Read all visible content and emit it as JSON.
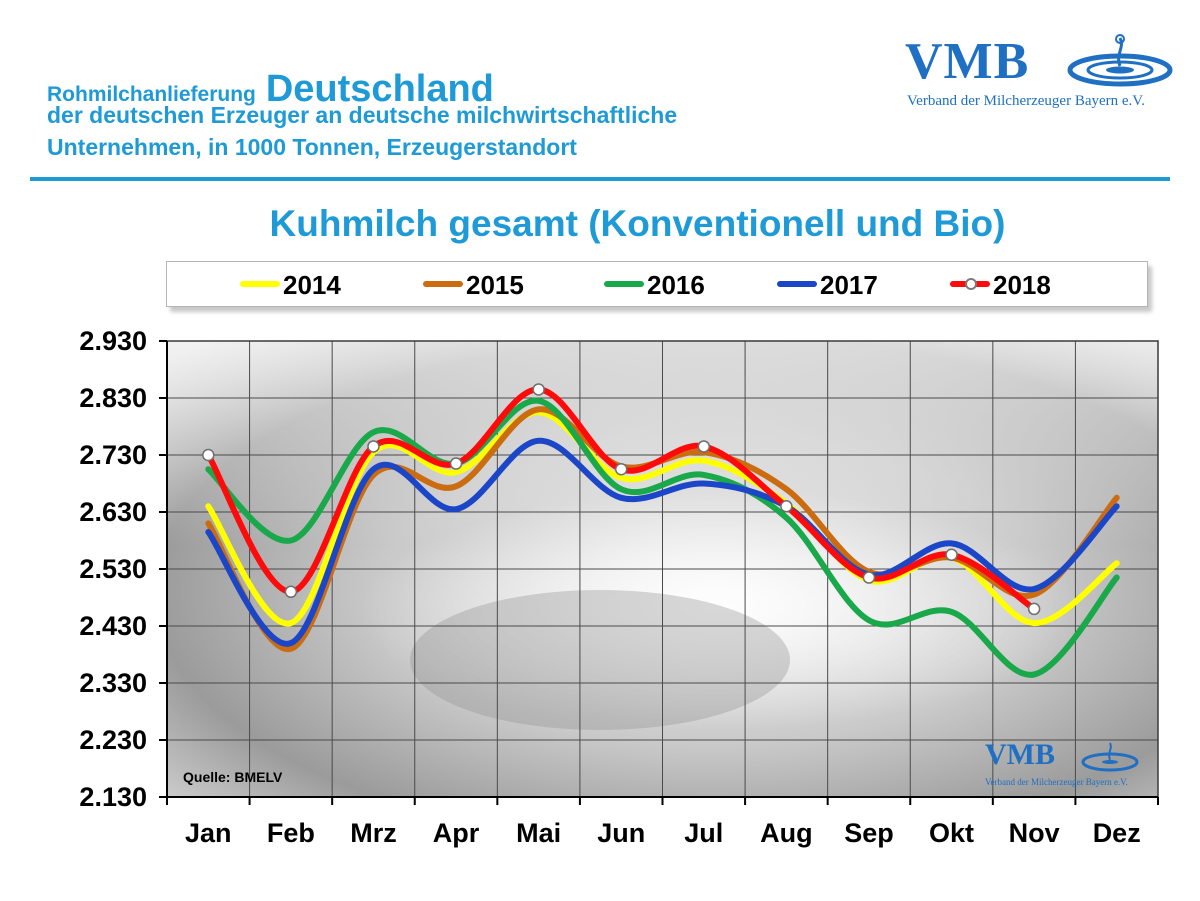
{
  "header": {
    "title_small": "Rohmilchanlieferung",
    "title_large": "Deutschland",
    "line2": "der deutschen Erzeuger an deutsche milchwirtschaftliche",
    "line3": "Unternehmen, in 1000 Tonnen, Erzeugerstandort"
  },
  "logo": {
    "text": "VMB",
    "subtitle": "Verband der Milcherzeuger Bayern e.V."
  },
  "watermark": {
    "text": "VMB",
    "subtitle": "Verband der Milcherzeuger Bayern e.V."
  },
  "source": "Quelle: BMELV",
  "colors": {
    "accent": "#1e9ad6",
    "logo": "#1f6fc3"
  },
  "chart_data": {
    "type": "line",
    "title": "Kuhmilch gesamt (Konventionell und Bio)",
    "xlabel": "",
    "ylabel": "",
    "categories": [
      "Jan",
      "Feb",
      "Mrz",
      "Apr",
      "Mai",
      "Jun",
      "Jul",
      "Aug",
      "Sep",
      "Okt",
      "Nov",
      "Dez"
    ],
    "ylim": [
      2130,
      2930
    ],
    "yticks": [
      2130,
      2230,
      2330,
      2430,
      2530,
      2630,
      2730,
      2830,
      2930
    ],
    "ytick_labels": [
      "2.130",
      "2.230",
      "2.330",
      "2.430",
      "2.530",
      "2.630",
      "2.730",
      "2.830",
      "2.930"
    ],
    "grid": true,
    "legend_position": "top",
    "series": [
      {
        "name": "2014",
        "color": "#ffff00",
        "values": [
          2640,
          2435,
          2735,
          2700,
          2805,
          2690,
          2720,
          2645,
          2510,
          2550,
          2435,
          2540
        ]
      },
      {
        "name": "2015",
        "color": "#cc6c10",
        "values": [
          2610,
          2390,
          2695,
          2675,
          2810,
          2710,
          2735,
          2670,
          2525,
          2550,
          2485,
          2655
        ]
      },
      {
        "name": "2016",
        "color": "#19a84a",
        "values": [
          2705,
          2580,
          2770,
          2715,
          2825,
          2670,
          2695,
          2620,
          2440,
          2455,
          2345,
          2515
        ]
      },
      {
        "name": "2017",
        "color": "#1c46c8",
        "values": [
          2595,
          2400,
          2705,
          2635,
          2755,
          2655,
          2680,
          2640,
          2520,
          2575,
          2495,
          2640
        ]
      },
      {
        "name": "2018",
        "color": "#ff0a0a",
        "values": [
          2730,
          2490,
          2745,
          2715,
          2845,
          2705,
          2745,
          2640,
          2515,
          2555,
          2460,
          null
        ],
        "markers": true
      }
    ]
  }
}
